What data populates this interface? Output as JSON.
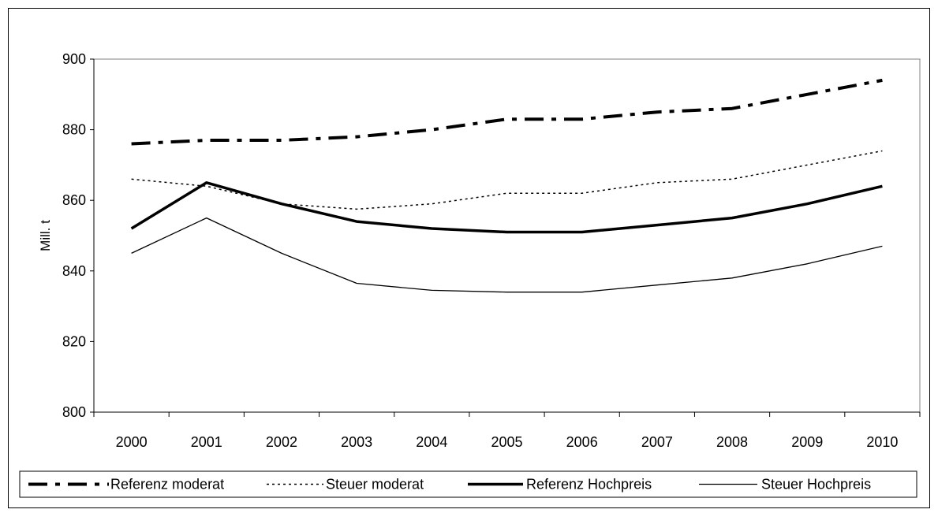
{
  "chart_data": {
    "type": "line",
    "title": "",
    "xlabel": "",
    "ylabel": "Mill. t",
    "ylim": [
      800,
      900
    ],
    "y_ticks": [
      "800",
      "820",
      "840",
      "860",
      "880",
      "900"
    ],
    "categories": [
      "2000",
      "2001",
      "2002",
      "2003",
      "2004",
      "2005",
      "2006",
      "2007",
      "2008",
      "2009",
      "2010"
    ],
    "grid": false,
    "legend_position": "bottom",
    "series": [
      {
        "name": "Referenz moderat",
        "style": "dash-dot",
        "color": "#000000",
        "values": [
          876,
          877,
          877,
          878,
          880,
          883,
          883,
          885,
          886,
          890,
          894
        ]
      },
      {
        "name": "Steuer moderat",
        "style": "dotted",
        "color": "#000000",
        "values": [
          866,
          864,
          859,
          857.5,
          859,
          862,
          862,
          865,
          866,
          870,
          874
        ]
      },
      {
        "name": "Referenz Hochpreis",
        "style": "thick",
        "color": "#000000",
        "values": [
          852,
          865,
          859,
          854,
          852,
          851,
          851,
          853,
          855,
          859,
          864
        ]
      },
      {
        "name": "Steuer Hochpreis",
        "style": "thin",
        "color": "#000000",
        "values": [
          845,
          855,
          845,
          836.5,
          834.5,
          834,
          834,
          836,
          838,
          842,
          847
        ]
      }
    ]
  }
}
